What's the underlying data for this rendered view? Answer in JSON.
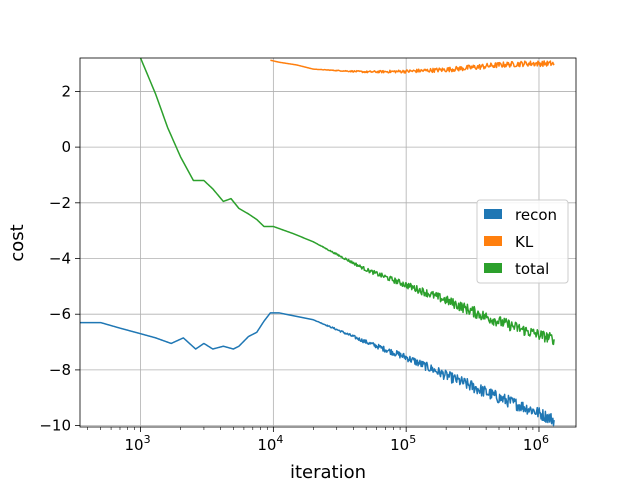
{
  "chart_data": {
    "type": "line",
    "title": "",
    "xlabel": "iteration",
    "ylabel": "cost",
    "xscale": "log",
    "xlim": [
      350,
      1900000
    ],
    "ylim": [
      -10.05,
      3.2
    ],
    "grid": true,
    "legend_position": "center-right",
    "x_ticks": [
      {
        "value": 1000,
        "base": "10",
        "exp": "3"
      },
      {
        "value": 10000,
        "base": "10",
        "exp": "4"
      },
      {
        "value": 100000,
        "base": "10",
        "exp": "5"
      },
      {
        "value": 1000000,
        "base": "10",
        "exp": "6"
      }
    ],
    "y_ticks": [
      {
        "value": 2,
        "label": "2"
      },
      {
        "value": 0,
        "label": "0"
      },
      {
        "value": -2,
        "label": "−2"
      },
      {
        "value": -4,
        "label": "−4"
      },
      {
        "value": -6,
        "label": "−6"
      },
      {
        "value": -8,
        "label": "−8"
      },
      {
        "value": -10,
        "label": "−10"
      }
    ],
    "series": [
      {
        "name": "recon",
        "color": "#1f77b4",
        "noise": 0.22,
        "points": [
          [
            350,
            -6.3
          ],
          [
            500,
            -6.3
          ],
          [
            700,
            -6.5
          ],
          [
            1000,
            -6.7
          ],
          [
            1300,
            -6.85
          ],
          [
            1700,
            -7.05
          ],
          [
            2100,
            -6.85
          ],
          [
            2600,
            -7.25
          ],
          [
            3000,
            -7.05
          ],
          [
            3500,
            -7.25
          ],
          [
            4200,
            -7.15
          ],
          [
            5000,
            -7.25
          ],
          [
            5500,
            -7.15
          ],
          [
            6500,
            -6.8
          ],
          [
            7500,
            -6.65
          ],
          [
            8500,
            -6.25
          ],
          [
            9500,
            -5.95
          ],
          [
            11000,
            -5.95
          ],
          [
            14000,
            -6.05
          ],
          [
            20000,
            -6.2
          ],
          [
            30000,
            -6.55
          ],
          [
            50000,
            -7.0
          ],
          [
            100000,
            -7.55
          ],
          [
            200000,
            -8.2
          ],
          [
            500000,
            -9.0
          ],
          [
            900000,
            -9.45
          ],
          [
            1300000,
            -9.8
          ]
        ]
      },
      {
        "name": "KL",
        "color": "#ff7f0e",
        "noise": 0.1,
        "points": [
          [
            9500,
            3.12
          ],
          [
            11000,
            3.05
          ],
          [
            15000,
            2.95
          ],
          [
            20000,
            2.8
          ],
          [
            30000,
            2.75
          ],
          [
            50000,
            2.7
          ],
          [
            100000,
            2.72
          ],
          [
            200000,
            2.78
          ],
          [
            300000,
            2.85
          ],
          [
            500000,
            2.95
          ],
          [
            800000,
            3.0
          ],
          [
            1300000,
            3.0
          ]
        ]
      },
      {
        "name": "total",
        "color": "#2ca02c",
        "noise": 0.2,
        "points": [
          [
            1000,
            3.2
          ],
          [
            1300,
            1.9
          ],
          [
            1600,
            0.7
          ],
          [
            2000,
            -0.35
          ],
          [
            2500,
            -1.2
          ],
          [
            3000,
            -1.2
          ],
          [
            3500,
            -1.5
          ],
          [
            4200,
            -1.95
          ],
          [
            4800,
            -1.85
          ],
          [
            5500,
            -2.2
          ],
          [
            6500,
            -2.4
          ],
          [
            7500,
            -2.6
          ],
          [
            8500,
            -2.85
          ],
          [
            10000,
            -2.85
          ],
          [
            14000,
            -3.1
          ],
          [
            20000,
            -3.4
          ],
          [
            30000,
            -3.85
          ],
          [
            50000,
            -4.4
          ],
          [
            100000,
            -4.95
          ],
          [
            200000,
            -5.5
          ],
          [
            400000,
            -6.1
          ],
          [
            800000,
            -6.6
          ],
          [
            1300000,
            -6.9
          ]
        ]
      }
    ]
  }
}
